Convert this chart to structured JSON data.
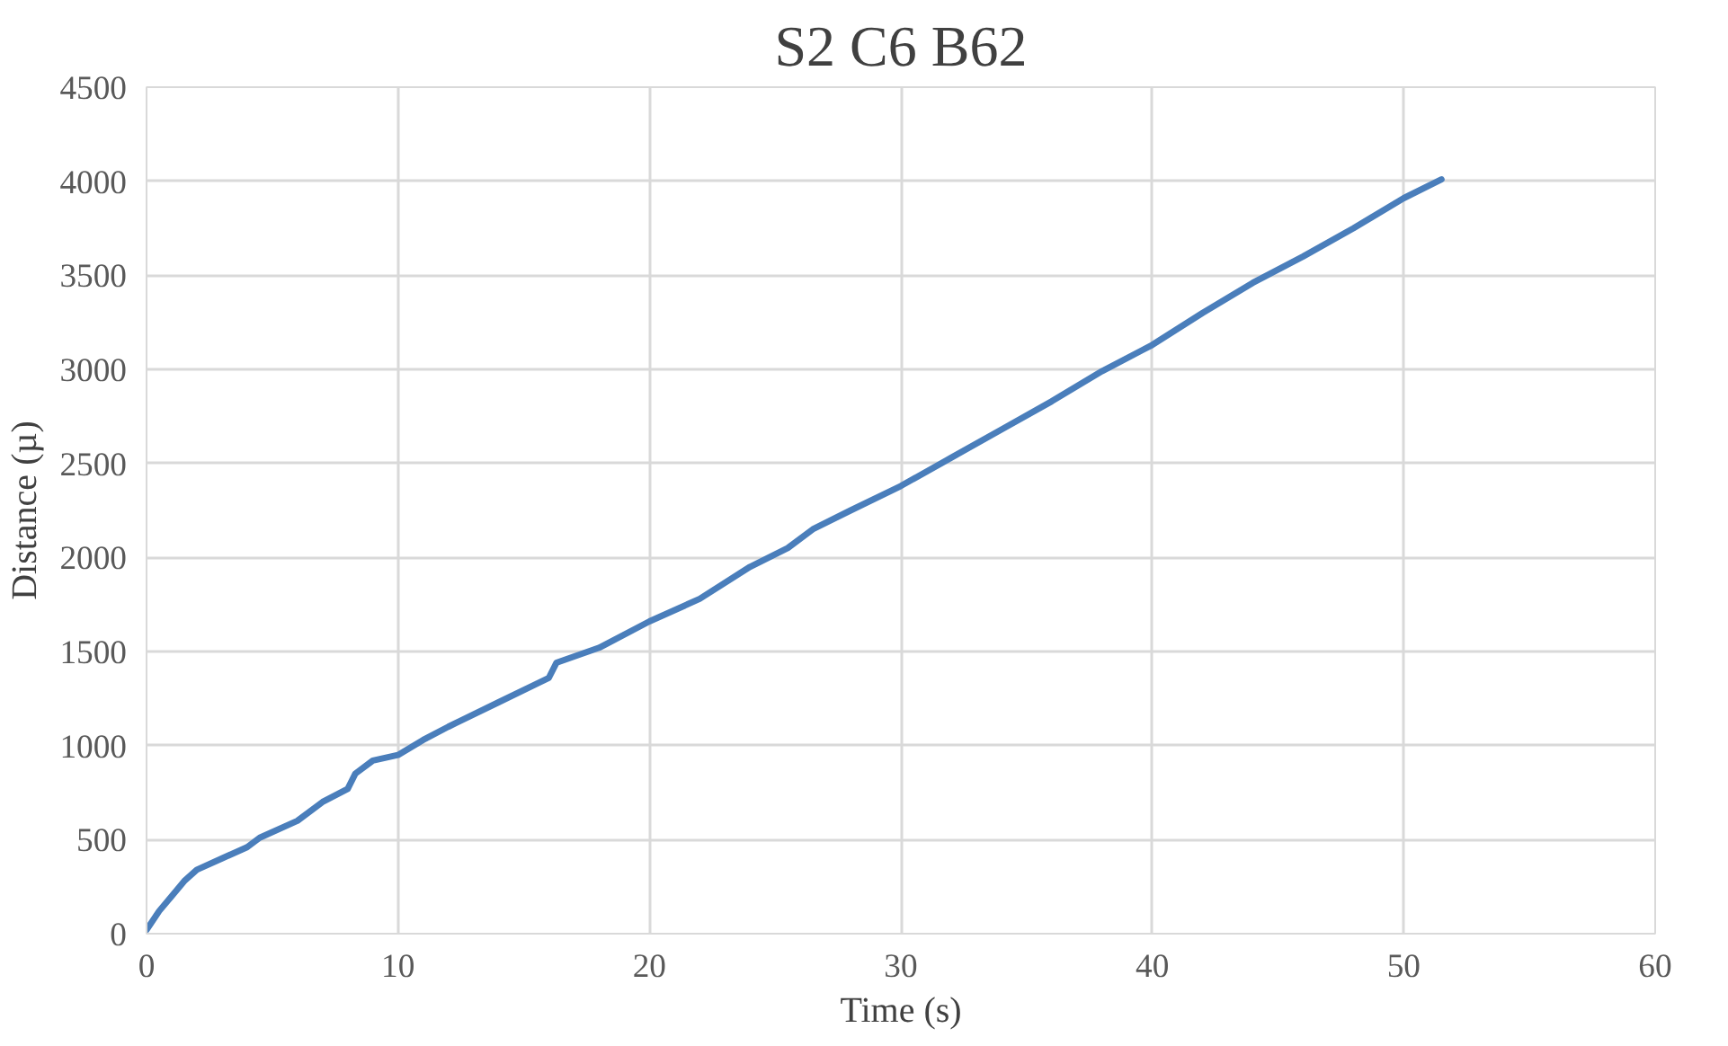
{
  "chart_data": {
    "type": "line",
    "title": "S2 C6 B62",
    "xlabel": "Time (s)",
    "ylabel": "Distance (µ)",
    "x": [
      0,
      0.5,
      1,
      1.5,
      2,
      3,
      4,
      4.5,
      6,
      7,
      8,
      8.3,
      9,
      10,
      11,
      12,
      14,
      16,
      16.3,
      18,
      20,
      22,
      24,
      25.5,
      26.5,
      28,
      30,
      32,
      34,
      36,
      38,
      40,
      42,
      44,
      46,
      48,
      50,
      51.5
    ],
    "series": [
      {
        "color": "#4a7ebb",
        "values": [
          20,
          120,
          200,
          280,
          340,
          400,
          460,
          510,
          600,
          700,
          770,
          850,
          920,
          950,
          1030,
          1100,
          1230,
          1360,
          1440,
          1520,
          1660,
          1780,
          1950,
          2050,
          2150,
          2250,
          2380,
          2530,
          2680,
          2830,
          2990,
          3130,
          3300,
          3460,
          3600,
          3750,
          3910,
          4010
        ]
      }
    ],
    "xlim": [
      0,
      60
    ],
    "xticks": [
      0,
      10,
      20,
      30,
      40,
      50,
      60
    ],
    "ylim": [
      0,
      4500
    ],
    "yticks": [
      0,
      500,
      1000,
      1500,
      2000,
      2500,
      3000,
      3500,
      4000,
      4500
    ],
    "grid": true,
    "marker": "none",
    "line_style": "solid"
  }
}
